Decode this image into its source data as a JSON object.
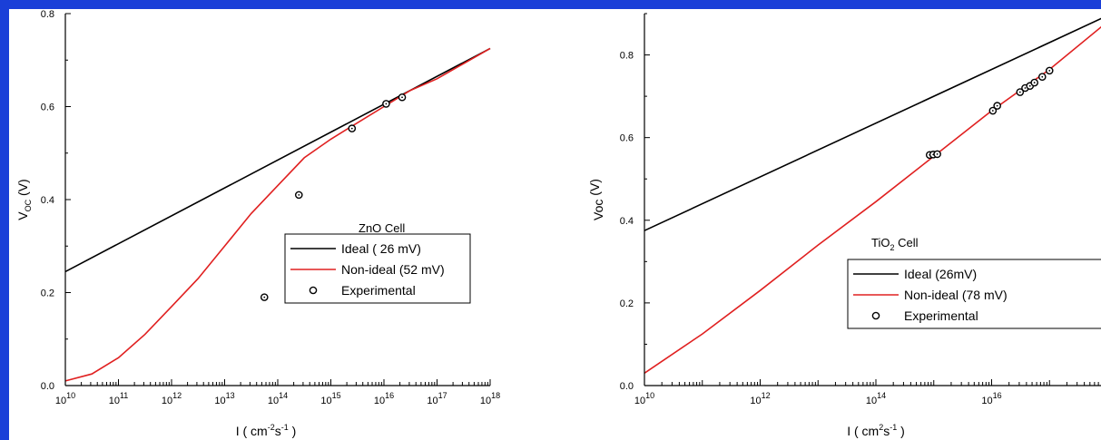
{
  "chart_data": [
    {
      "type": "line",
      "title": "",
      "annotation_main": "ZnO Cell",
      "annotation_sub": "",
      "annotation_rest": "",
      "xlabel_main": "I ( cm",
      "xlabel_sup1": "-2",
      "xlabel_mid": "s",
      "xlabel_sup2": "-1",
      "xlabel_end": " )",
      "ylabel_main": "V",
      "ylabel_sub": "OC",
      "ylabel_end": " (V)",
      "x_scale": "log",
      "xlim": [
        10000000000.0,
        1e+18
      ],
      "ylim": [
        0.0,
        0.8
      ],
      "x_ticks": [
        {
          "base": "10",
          "exp": "10"
        },
        {
          "base": "10",
          "exp": "11"
        },
        {
          "base": "10",
          "exp": "12"
        },
        {
          "base": "10",
          "exp": "13"
        },
        {
          "base": "10",
          "exp": "14"
        },
        {
          "base": "10",
          "exp": "15"
        },
        {
          "base": "10",
          "exp": "16"
        },
        {
          "base": "10",
          "exp": "17"
        },
        {
          "base": "10",
          "exp": "18"
        }
      ],
      "y_ticks": [
        "0.0",
        "0.2",
        "0.4",
        "0.6",
        "0.8"
      ],
      "legend_position": "right",
      "series": [
        {
          "name": "Ideal ( 26 mV)",
          "kind": "line",
          "color": "#000000",
          "x": [
            10000000000.0,
            1e+18
          ],
          "y": [
            0.245,
            0.725
          ]
        },
        {
          "name": "Non-ideal (52 mV)",
          "kind": "line",
          "color": "#e02020",
          "x": [
            10000000000.0,
            31600000000.0,
            100000000000.0,
            316000000000.0,
            1000000000000.0,
            3160000000000.0,
            10000000000000.0,
            31600000000000.0,
            100000000000000.0,
            316000000000000.0,
            1000000000000000.0,
            3160000000000000.0,
            1e+16,
            3.16e+16,
            1e+17,
            1e+18
          ],
          "y": [
            0.01,
            0.025,
            0.06,
            0.11,
            0.17,
            0.23,
            0.3,
            0.37,
            0.43,
            0.49,
            0.53,
            0.565,
            0.6,
            0.635,
            0.66,
            0.725
          ]
        },
        {
          "name": "Experimental",
          "kind": "scatter",
          "color": "#000000",
          "x": [
            56000000000000.0,
            250000000000000.0,
            2500000000000000.0,
            1.1e+16,
            2.2e+16
          ],
          "y": [
            0.19,
            0.41,
            0.553,
            0.606,
            0.62
          ]
        }
      ]
    },
    {
      "type": "line",
      "title": "",
      "annotation_main": "TiO",
      "annotation_sub": "2",
      "annotation_rest": " Cell",
      "xlabel_main": "I ( cm",
      "xlabel_sup1": "2",
      "xlabel_mid": "s",
      "xlabel_sup2": "-1",
      "xlabel_end": " )",
      "ylabel_main": "Voc",
      "ylabel_sub": "",
      "ylabel_end": " (V)",
      "x_scale": "log",
      "xlim": [
        10000000000.0,
        1e+18
      ],
      "ylim": [
        0.0,
        0.9
      ],
      "x_ticks": [
        {
          "base": "10",
          "exp": "10"
        },
        {
          "base": "10",
          "exp": "12"
        },
        {
          "base": "10",
          "exp": "14"
        },
        {
          "base": "10",
          "exp": "16"
        },
        {
          "base": "10",
          "exp": ""
        }
      ],
      "y_ticks": [
        "0.0",
        "0.2",
        "0.4",
        "0.6",
        "0.8"
      ],
      "legend_position": "bottom-right",
      "series": [
        {
          "name": "Ideal (26mV)",
          "kind": "line",
          "color": "#000000",
          "x": [
            10000000000.0,
            1e+18
          ],
          "y": [
            0.375,
            0.895
          ]
        },
        {
          "name": "Non-ideal (78 mV)",
          "kind": "line",
          "color": "#e02020",
          "x": [
            10000000000.0,
            100000000000.0,
            1000000000000.0,
            10000000000000.0,
            100000000000000.0,
            1000000000000000.0,
            1e+16,
            1e+17,
            1e+18
          ],
          "y": [
            0.03,
            0.125,
            0.23,
            0.34,
            0.445,
            0.555,
            0.665,
            0.765,
            0.88
          ]
        },
        {
          "name": "Experimental",
          "kind": "scatter",
          "color": "#000000",
          "x": [
            850000000000000.0,
            980000000000000.0,
            1150000000000000.0,
            1.05e+16,
            1.25e+16,
            3.1e+16,
            3.8e+16,
            4.6e+16,
            5.5e+16,
            7.5e+16,
            1e+17
          ],
          "y": [
            0.558,
            0.559,
            0.56,
            0.665,
            0.677,
            0.71,
            0.72,
            0.725,
            0.733,
            0.747,
            0.762
          ]
        }
      ]
    }
  ]
}
